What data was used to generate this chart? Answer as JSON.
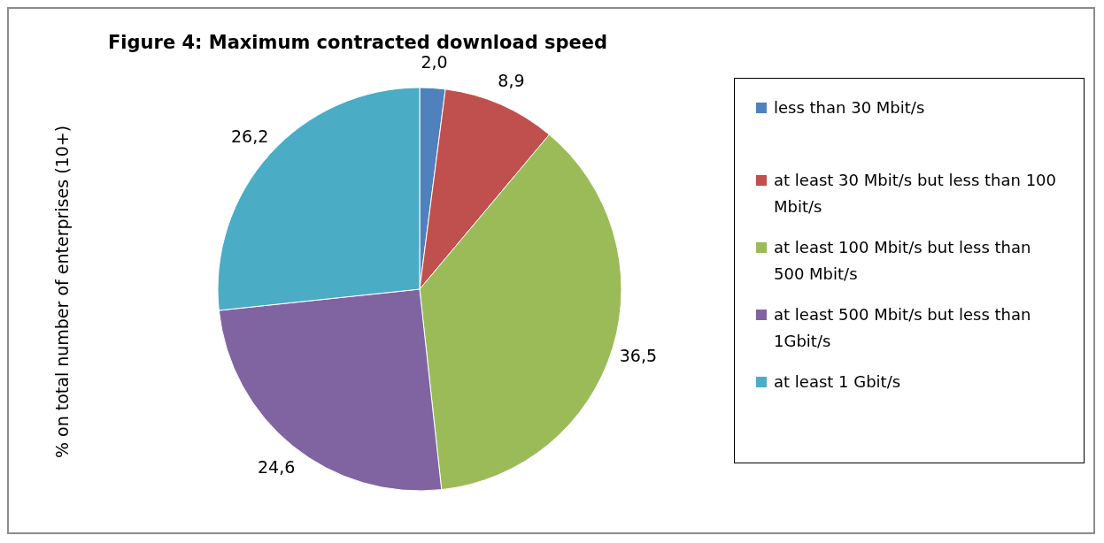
{
  "chart_data": {
    "type": "pie",
    "title": "Figure 4: Maximum contracted download speed",
    "ylabel": "% on total number of enterprises (10+)",
    "categories": [
      "less than 30 Mbit/s",
      "at least 30 Mbit/s but less than 100 Mbit/s",
      "at least 100 Mbit/s but less than 500 Mbit/s",
      "at least 500 Mbit/s but less than 1Gbit/s",
      "at least 1 Gbit/s"
    ],
    "values": [
      2.0,
      8.9,
      36.5,
      24.6,
      26.2
    ],
    "colors": [
      "#4f81bd",
      "#c0504d",
      "#9bbb59",
      "#8064a2",
      "#4bacc6"
    ],
    "value_labels": [
      "2,0",
      "8,9",
      "36,5",
      "24,6",
      "26,2"
    ],
    "legend": "right"
  }
}
